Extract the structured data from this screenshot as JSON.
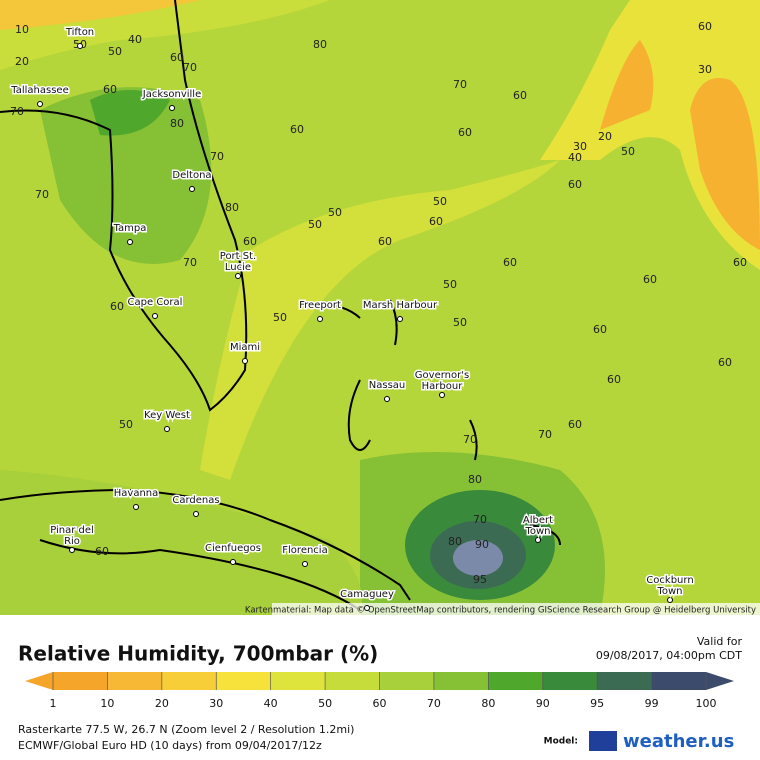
{
  "map": {
    "attribution": "Kartenmaterial: Map data © OpenStreetMap contributors, rendering GIScience Research Group @ Heidelberg University",
    "cities": [
      [
        "Tifton"
      ],
      [
        "Tallahassee"
      ],
      [
        "Jacksonville"
      ],
      [
        "Deltona"
      ],
      [
        "Tampa"
      ],
      [
        "Port St.",
        "Lucie"
      ],
      [
        "Cape Coral"
      ],
      [
        "Miami"
      ],
      [
        "Key West"
      ],
      [
        "Freeport"
      ],
      [
        "Marsh Harbour"
      ],
      [
        "Nassau"
      ],
      [
        "Governor's",
        "Harbour"
      ],
      [
        "Havanna"
      ],
      [
        "Cardenas"
      ],
      [
        "Pinar del",
        "Rio"
      ],
      [
        "Cienfuegos"
      ],
      [
        "Florencia"
      ],
      [
        "Camaguey"
      ],
      [
        "Albert",
        "Town"
      ],
      [
        "Cockburn",
        "Town"
      ]
    ],
    "contour_labels": [
      10,
      50,
      40,
      20,
      50,
      60,
      70,
      80,
      60,
      30,
      70,
      60,
      60,
      70,
      80,
      60,
      60,
      30,
      20,
      40,
      50,
      70,
      60,
      70,
      80,
      50,
      50,
      50,
      60,
      60,
      60,
      60,
      60,
      70,
      60,
      50,
      60,
      50,
      50,
      60,
      60,
      60,
      50,
      60,
      70,
      70,
      80,
      70,
      80,
      90,
      95,
      60
    ]
  },
  "legend": {
    "title": "Relative Humidity, 700mbar (%)",
    "valid_label": "Valid for",
    "valid_time": "09/08/2017, 04:00pm CDT",
    "ticks": [
      1,
      10,
      20,
      30,
      40,
      50,
      60,
      70,
      80,
      90,
      95,
      99,
      100
    ],
    "colors": [
      "#f5a52a",
      "#f7b935",
      "#f7cd38",
      "#f6e23a",
      "#dfe43c",
      "#c6dc3b",
      "#a8d03a",
      "#86c035",
      "#4fa72b",
      "#3a8a3c",
      "#3c6b53",
      "#3c4b6c"
    ]
  },
  "footer": {
    "line1": "Rasterkarte 77.5 W, 26.7 N (Zoom level 2 / Resolution 1.2mi)",
    "line2": "ECMWF/Global Euro HD (10 days) from 09/04/2017/12z",
    "model_label": "Model:",
    "brand": "weather.us"
  }
}
